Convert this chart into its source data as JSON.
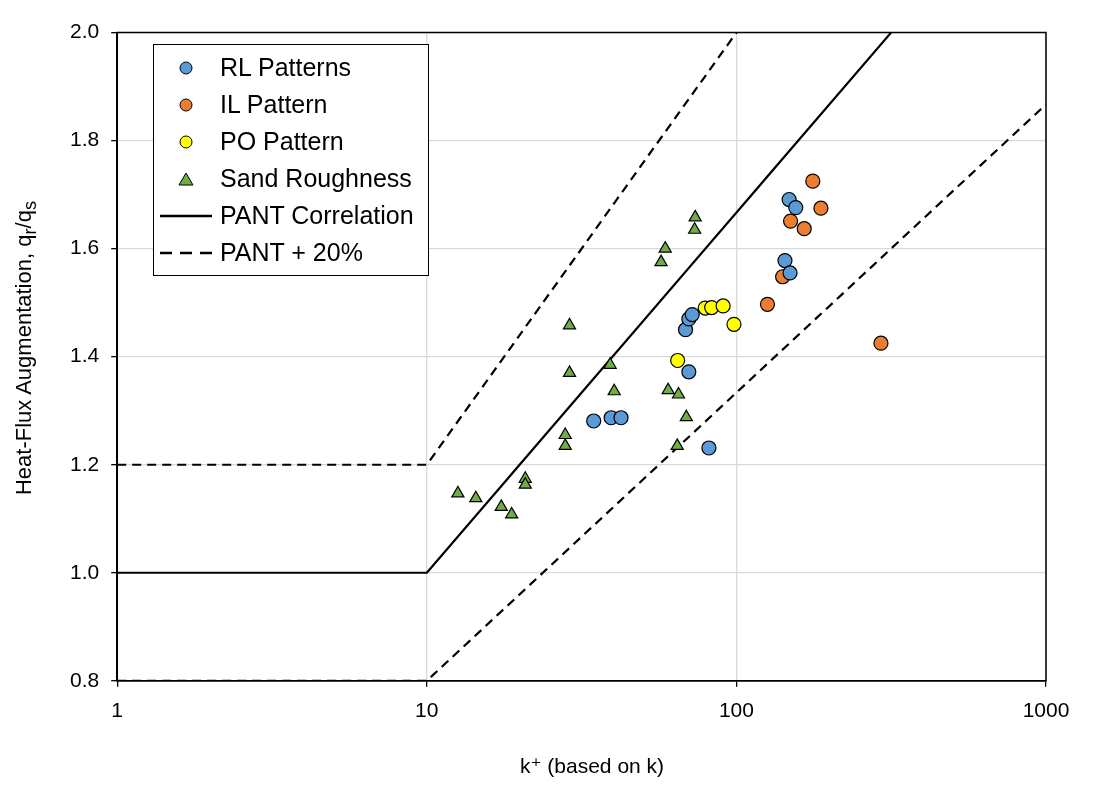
{
  "chart_data": {
    "type": "scatter",
    "xlabel": "k⁺ (based on k)",
    "ylabel": "Heat-Flux Augmentation, q$_{r}$/q$_{s}$",
    "log": "x",
    "grid": true,
    "legend": "top left",
    "xlim": [
      1,
      1000
    ],
    "xticks": [
      1,
      10,
      100,
      1000
    ],
    "ylim": [
      0.8,
      2.0
    ],
    "yticks": [
      0.8,
      {
        "value": 1.0,
        "label": "1.0"
      },
      1.2,
      1.4,
      1.6,
      1.8,
      {
        "value": 2.0,
        "label": "2.0"
      }
    ],
    "series": [
      {
        "name": "RL Patterns",
        "marker": "circle",
        "color": "#5b9bd5",
        "x": [
          34.6,
          39.4,
          42.4,
          68.5,
          70.2,
          72,
          70.2,
          81.5,
          148,
          155.5,
          143.5,
          149
        ],
        "values": [
          1.281,
          1.287,
          1.287,
          1.45,
          1.47,
          1.478,
          1.372,
          1.231,
          1.691,
          1.676,
          1.578,
          1.555
        ]
      },
      {
        "name": "IL Pattern",
        "marker": "circle",
        "color": "#ed7d31",
        "x": [
          176.5,
          187.5,
          149.6,
          165.6,
          141,
          126,
          293
        ],
        "values": [
          1.725,
          1.675,
          1.651,
          1.637,
          1.548,
          1.497,
          1.425
        ]
      },
      {
        "name": "PO Pattern",
        "marker": "circle",
        "color": "#ffff00",
        "x": [
          79.3,
          83.2,
          90.6,
          98.2,
          64.6
        ],
        "values": [
          1.49,
          1.491,
          1.494,
          1.46,
          1.393
        ]
      },
      {
        "name": "Sand Roughness",
        "marker": "triangle",
        "color": "#70ad47",
        "x": [
          12.6,
          14.4,
          17.4,
          18.8,
          20.8,
          20.8,
          28.0,
          28.0,
          28.9,
          28.9,
          39.1,
          40.3,
          57.1,
          58.9,
          60.2,
          65,
          64.4,
          68.9,
          73.3,
          73.6
        ],
        "values": [
          1.147,
          1.138,
          1.122,
          1.108,
          1.174,
          1.163,
          1.255,
          1.235,
          1.37,
          1.458,
          1.385,
          1.336,
          1.575,
          1.6,
          1.338,
          1.33,
          1.235,
          1.288,
          1.635,
          1.658
        ]
      },
      {
        "name": "PANT Correlation",
        "type": "line",
        "marker": "none",
        "line_style": "solid",
        "color": "#000000",
        "x": [
          1,
          10,
          316
        ],
        "values": [
          1.0,
          1.0,
          2.0
        ]
      },
      {
        "name": "PANT + 20%",
        "type": "line",
        "marker": "none",
        "line_style": "dashed",
        "color": "#000000",
        "x": [
          1,
          10,
          100
        ],
        "values": [
          1.2,
          1.2,
          2.0
        ]
      },
      {
        "type": "line",
        "marker": "none",
        "line_style": "dashed",
        "color": "#000000",
        "x": [
          1,
          10,
          1000
        ],
        "values": [
          0.8,
          0.8,
          1.867
        ]
      }
    ]
  }
}
